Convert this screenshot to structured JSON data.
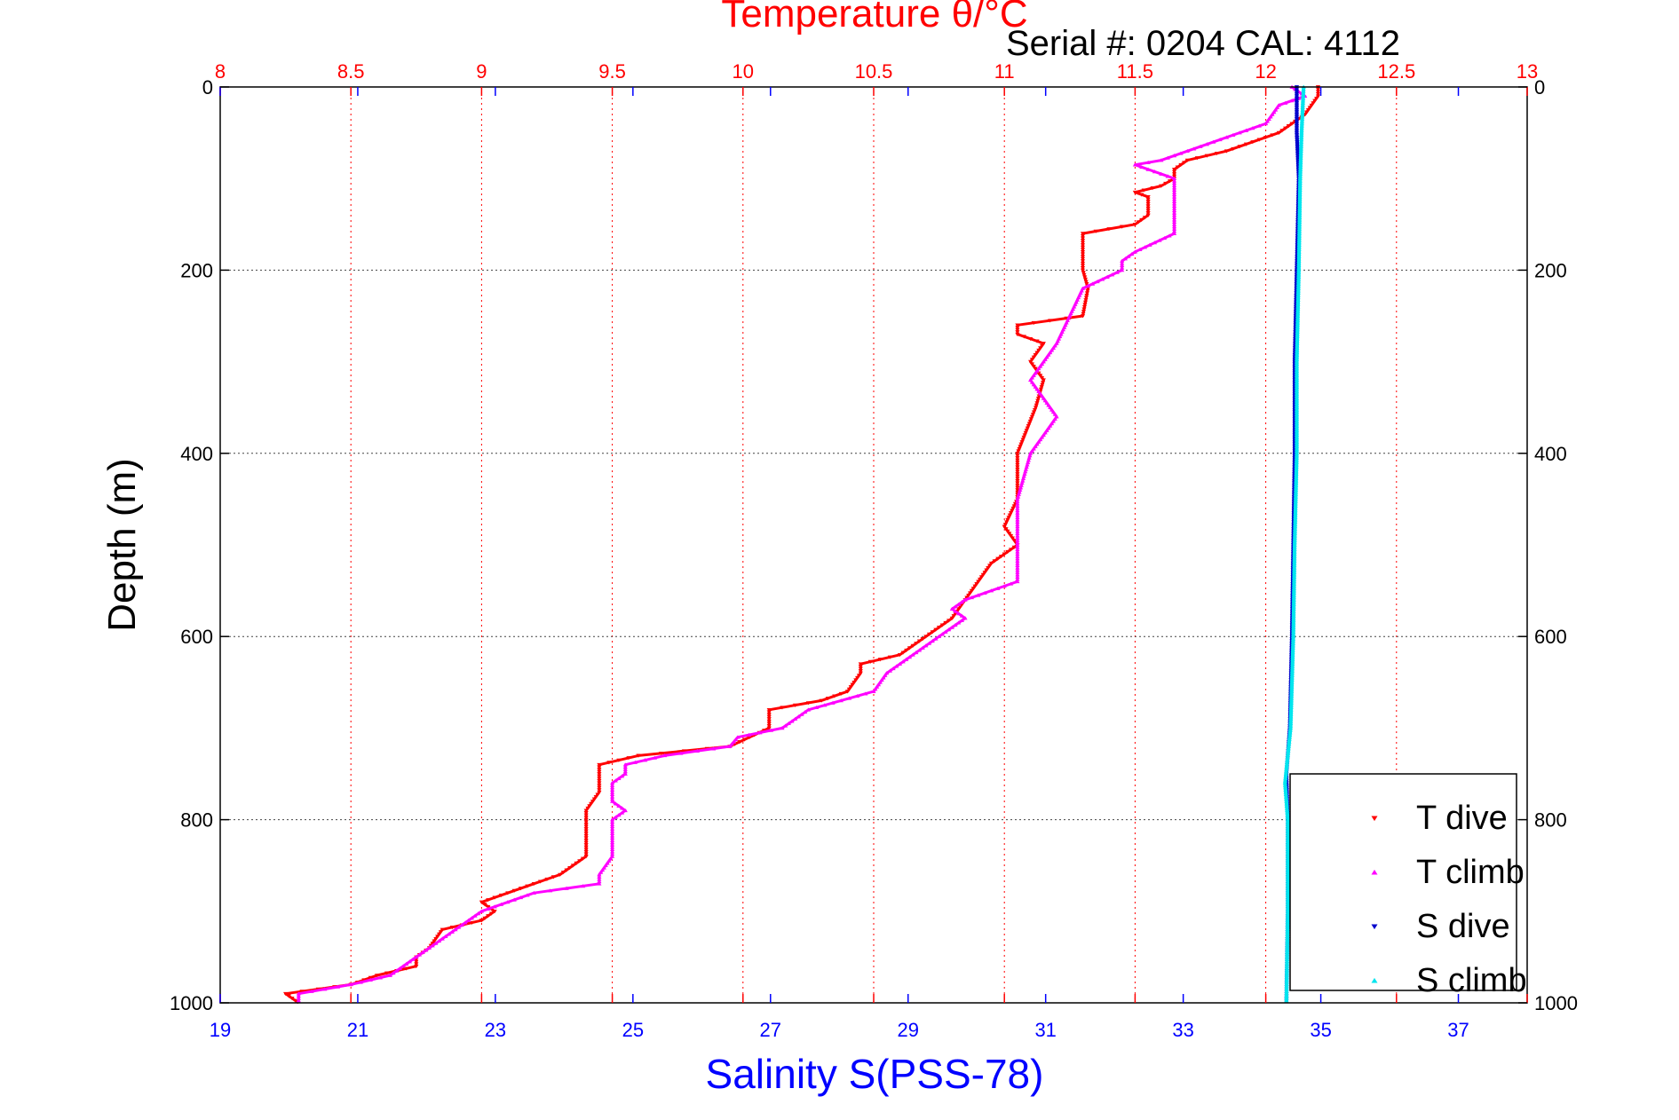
{
  "chart_data": {
    "type": "scatter",
    "title_top": "Temperature θ/°C",
    "annotation": "Serial #: 0204  CAL: 4112",
    "xlabel_bottom": "Salinity S(PSS-78)",
    "ylabel": "Depth (m)",
    "x_top_range": [
      8,
      13
    ],
    "x_top_ticks": [
      "8",
      "8.5",
      "9",
      "9.5",
      "10",
      "10.5",
      "11",
      "11.5",
      "12",
      "12.5",
      "13"
    ],
    "x_bottom_range": [
      19,
      38
    ],
    "x_bottom_ticks": [
      "19",
      "21",
      "23",
      "25",
      "27",
      "29",
      "31",
      "33",
      "35",
      "37"
    ],
    "y_range": [
      0,
      1000
    ],
    "y_ticks": [
      "0",
      "200",
      "400",
      "600",
      "800",
      "1000"
    ],
    "y_reversed": true,
    "grid": true,
    "legend_position": "bottom-right",
    "colors": {
      "t_dive": "#ff0000",
      "t_climb": "#ff00ff",
      "s_dive": "#0000cc",
      "s_climb": "#00e5ee",
      "top_axis": "#ff0000",
      "bottom_axis": "#0000ff"
    },
    "series": [
      {
        "name": "T dive",
        "axis": "top",
        "marker": "down-triangle",
        "depth": [
          0,
          10,
          30,
          50,
          70,
          80,
          90,
          100,
          108,
          115,
          120,
          130,
          140,
          150,
          160,
          170,
          200,
          220,
          250,
          260,
          270,
          280,
          300,
          320,
          350,
          400,
          450,
          480,
          500,
          510,
          520,
          540,
          560,
          580,
          600,
          620,
          630,
          640,
          660,
          670,
          680,
          700,
          720,
          730,
          740,
          750,
          760,
          770,
          790,
          800,
          820,
          840,
          860,
          870,
          880,
          890,
          900,
          910,
          920,
          940,
          950,
          960,
          970,
          980,
          990,
          1000
        ],
        "values": [
          12.2,
          12.2,
          12.15,
          12.05,
          11.85,
          11.7,
          11.65,
          11.65,
          11.6,
          11.5,
          11.55,
          11.55,
          11.55,
          11.5,
          11.3,
          11.3,
          11.3,
          11.32,
          11.3,
          11.05,
          11.05,
          11.15,
          11.1,
          11.15,
          11.12,
          11.05,
          11.05,
          11.0,
          11.05,
          11.0,
          10.95,
          10.9,
          10.85,
          10.8,
          10.7,
          10.6,
          10.45,
          10.45,
          10.4,
          10.3,
          10.1,
          10.1,
          9.95,
          9.6,
          9.45,
          9.45,
          9.45,
          9.45,
          9.4,
          9.4,
          9.4,
          9.4,
          9.3,
          9.2,
          9.1,
          9.0,
          9.05,
          9.0,
          8.85,
          8.8,
          8.75,
          8.75,
          8.6,
          8.5,
          8.25,
          8.3
        ]
      },
      {
        "name": "T climb",
        "axis": "top",
        "marker": "up-triangle",
        "depth": [
          0,
          10,
          20,
          40,
          60,
          80,
          85,
          100,
          130,
          160,
          180,
          190,
          200,
          220,
          250,
          280,
          300,
          320,
          340,
          360,
          380,
          400,
          450,
          500,
          540,
          560,
          570,
          580,
          600,
          620,
          640,
          660,
          680,
          700,
          710,
          720,
          730,
          740,
          750,
          760,
          780,
          790,
          800,
          820,
          840,
          860,
          870,
          880,
          900,
          920,
          940,
          950,
          970,
          980,
          990,
          1000
        ],
        "values": [
          12.1,
          12.15,
          12.05,
          12.0,
          11.8,
          11.6,
          11.5,
          11.65,
          11.65,
          11.65,
          11.5,
          11.45,
          11.45,
          11.3,
          11.25,
          11.2,
          11.15,
          11.1,
          11.15,
          11.2,
          11.15,
          11.1,
          11.05,
          11.05,
          11.05,
          10.85,
          10.8,
          10.85,
          10.75,
          10.65,
          10.55,
          10.5,
          10.25,
          10.15,
          9.98,
          9.95,
          9.7,
          9.55,
          9.55,
          9.5,
          9.5,
          9.55,
          9.5,
          9.5,
          9.5,
          9.45,
          9.45,
          9.2,
          9.0,
          8.9,
          8.8,
          8.75,
          8.65,
          8.5,
          8.3,
          8.3
        ]
      },
      {
        "name": "S dive",
        "axis": "bottom",
        "marker": "down-triangle",
        "depth": [
          0,
          50,
          100,
          200,
          300,
          400,
          500,
          600,
          700,
          750,
          800,
          900,
          1000
        ],
        "values": [
          34.65,
          34.65,
          34.68,
          34.65,
          34.62,
          34.62,
          34.6,
          34.58,
          34.55,
          34.5,
          34.52,
          34.52,
          34.5
        ]
      },
      {
        "name": "S climb",
        "axis": "bottom",
        "marker": "up-triangle",
        "depth": [
          0,
          50,
          100,
          200,
          300,
          400,
          500,
          600,
          700,
          760,
          800,
          900,
          1000
        ],
        "values": [
          34.75,
          34.72,
          34.7,
          34.68,
          34.65,
          34.65,
          34.62,
          34.6,
          34.56,
          34.48,
          34.52,
          34.52,
          34.5
        ]
      }
    ]
  }
}
